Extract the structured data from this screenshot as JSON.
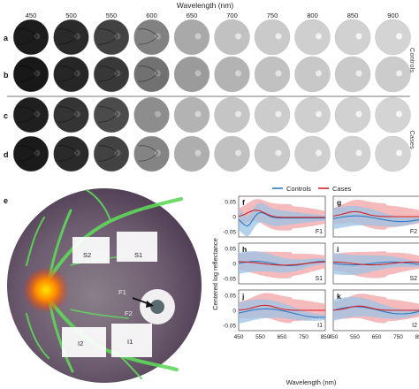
{
  "top": {
    "axis_title": "Wavelength (nm)",
    "wavelengths": [
      "450",
      "500",
      "550",
      "600",
      "650",
      "700",
      "750",
      "800",
      "850",
      "900"
    ],
    "row_letters": [
      "a",
      "b",
      "c",
      "d"
    ],
    "group_labels": [
      "Controls",
      "Cases"
    ],
    "row_brightness": [
      [
        0.12,
        0.18,
        0.28,
        0.55,
        0.72,
        0.82,
        0.86,
        0.88,
        0.89,
        0.9
      ],
      [
        0.1,
        0.16,
        0.24,
        0.48,
        0.66,
        0.76,
        0.82,
        0.85,
        0.86,
        0.87
      ],
      [
        0.13,
        0.22,
        0.32,
        0.6,
        0.76,
        0.84,
        0.87,
        0.88,
        0.89,
        0.9
      ],
      [
        0.11,
        0.18,
        0.28,
        0.56,
        0.74,
        0.82,
        0.86,
        0.88,
        0.89,
        0.9
      ]
    ]
  },
  "panel_e": {
    "letter": "e",
    "region_labels": [
      "S2",
      "S1",
      "F1",
      "F2",
      "I2",
      "I1"
    ]
  },
  "panel_f": {
    "legend": [
      "Controls",
      "Cases"
    ],
    "colors": {
      "controls": "#2f7bbf",
      "cases": "#d2232a",
      "controls_band": "#9cc3e6",
      "cases_band": "#f2a3a6"
    },
    "y_label": "Centered log reflectance",
    "x_label": "Wavelength (nm)",
    "x_ticks": [
      "450",
      "550",
      "650",
      "750",
      "850"
    ],
    "y_ticks": [
      "0.05",
      "0",
      "-0.05"
    ],
    "panels": [
      {
        "letter": "f",
        "region": "F1"
      },
      {
        "letter": "g",
        "region": "F2"
      },
      {
        "letter": "h",
        "region": "S1"
      },
      {
        "letter": "i",
        "region": "S2"
      },
      {
        "letter": "j",
        "region": "I1"
      },
      {
        "letter": "k",
        "region": "I2"
      }
    ]
  }
}
